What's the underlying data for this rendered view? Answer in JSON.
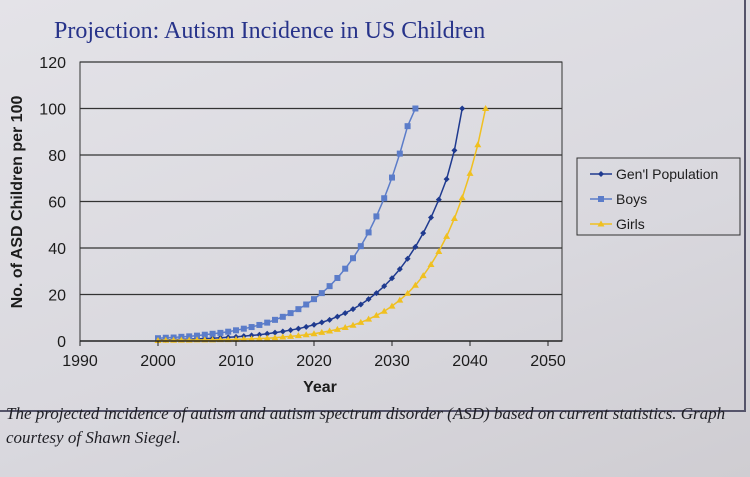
{
  "chart_data": {
    "type": "line",
    "title": "Projection: Autism Incidence in US Children",
    "xlabel": "Year",
    "ylabel": "No. of ASD Children per 100",
    "xlim": [
      1990,
      2050
    ],
    "ylim": [
      0,
      120
    ],
    "xticks": [
      "1990",
      "2000",
      "2010",
      "2020",
      "2030",
      "2040",
      "2050"
    ],
    "yticks": [
      "0",
      "20",
      "40",
      "60",
      "80",
      "100",
      "120"
    ],
    "grid": "horizontal",
    "legend_position": "right",
    "series": [
      {
        "name": "Gen'l Population",
        "color": "#1f3a8f",
        "marker": "diamond",
        "x_start": 2000,
        "values": [
          0.5,
          0.5,
          0.6,
          0.7,
          0.8,
          0.9,
          1.0,
          1.2,
          1.4,
          1.6,
          1.8,
          2.1,
          2.4,
          2.7,
          3.1,
          3.6,
          4.1,
          4.7,
          5.3,
          6.1,
          7.0,
          8.0,
          9.1,
          10.5,
          12.0,
          13.7,
          15.7,
          18.0,
          20.6,
          23.6,
          27.0,
          30.9,
          35.4,
          40.5,
          46.4,
          53.1,
          60.8,
          69.6,
          82.0,
          100
        ]
      },
      {
        "name": "Boys",
        "color": "#5b7cc9",
        "marker": "square",
        "x_start": 2000,
        "values": [
          1.2,
          1.4,
          1.5,
          1.8,
          2.0,
          2.3,
          2.7,
          3.1,
          3.5,
          4.0,
          4.6,
          5.3,
          6.0,
          6.9,
          7.9,
          9.1,
          10.4,
          12.0,
          13.7,
          15.7,
          18.0,
          20.6,
          23.6,
          27.1,
          31.1,
          35.6,
          40.8,
          46.7,
          53.6,
          61.4,
          70.3,
          80.6,
          92.4,
          100
        ]
      },
      {
        "name": "Girls",
        "color": "#f0c020",
        "marker": "triangle",
        "x_start": 2000,
        "values": [
          0.2,
          0.3,
          0.3,
          0.4,
          0.4,
          0.5,
          0.5,
          0.5,
          0.6,
          0.6,
          0.7,
          0.8,
          0.9,
          1.1,
          1.2,
          1.4,
          1.7,
          2.0,
          2.3,
          2.7,
          3.1,
          3.7,
          4.3,
          5.0,
          5.8,
          6.8,
          8.0,
          9.4,
          11.0,
          12.8,
          15.0,
          17.6,
          20.5,
          24.0,
          28.1,
          32.9,
          38.5,
          45.0,
          52.7,
          61.6,
          72.1,
          84.4,
          100
        ]
      }
    ]
  },
  "caption": "The projected incidence of autism and autism spectrum disorder (ASD) based on current statistics. Graph courtesy of Shawn Siegel."
}
